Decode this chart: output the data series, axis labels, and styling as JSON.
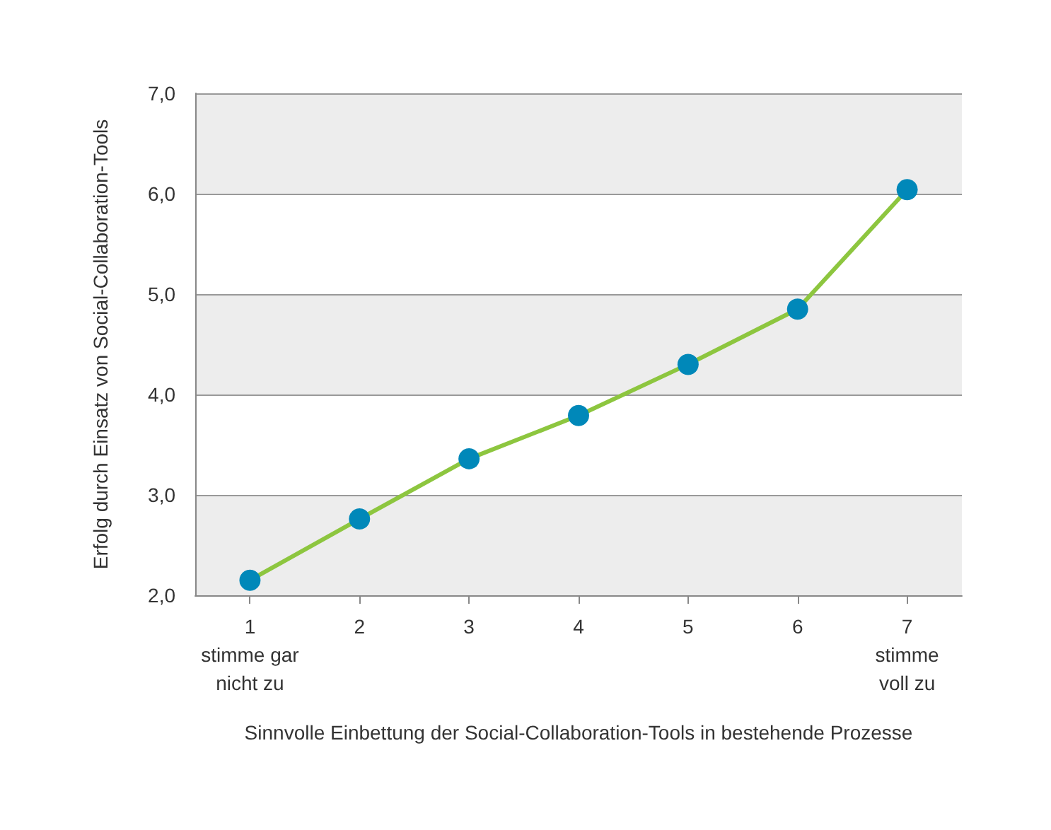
{
  "chart_data": {
    "type": "line",
    "xlabel": "Sinnvolle Einbettung der Social-Collaboration-Tools in bestehende Prozesse",
    "ylabel": "Erfolg durch Einsatz von Social-Collaboration-Tools",
    "x": [
      1,
      2,
      3,
      4,
      5,
      6,
      7
    ],
    "series": [
      {
        "color": "#8dc63f",
        "colors": [
          "#0088b9",
          "#0088b9",
          "#0088b9",
          "#0088b9",
          "#0088b9",
          "#0088b9",
          "#0088b9"
        ],
        "values": [
          2.15,
          2.76,
          3.36,
          3.79,
          4.3,
          4.85,
          6.04
        ]
      }
    ],
    "xlim": [
      0.5,
      7.5
    ],
    "xticks": [
      {
        "value": 1,
        "label": "1\nstimme gar\nnicht zu"
      },
      {
        "value": 2,
        "label": "2"
      },
      {
        "value": 3,
        "label": "3"
      },
      {
        "value": 4,
        "label": "4"
      },
      {
        "value": 5,
        "label": "5"
      },
      {
        "value": 6,
        "label": "6"
      },
      {
        "value": 7,
        "label": "7\nstimme\nvoll zu"
      }
    ],
    "ylim": [
      2,
      7
    ],
    "yticks": [
      {
        "value": 2,
        "label": "2,0"
      },
      {
        "value": 3,
        "label": "3,0"
      },
      {
        "value": 4,
        "label": "4,0"
      },
      {
        "value": 5,
        "label": "5,0"
      },
      {
        "value": 6,
        "label": "6,0"
      },
      {
        "value": 7,
        "label": "7,0"
      }
    ],
    "grid": "y",
    "marker": "circle",
    "line_style": "solid"
  }
}
